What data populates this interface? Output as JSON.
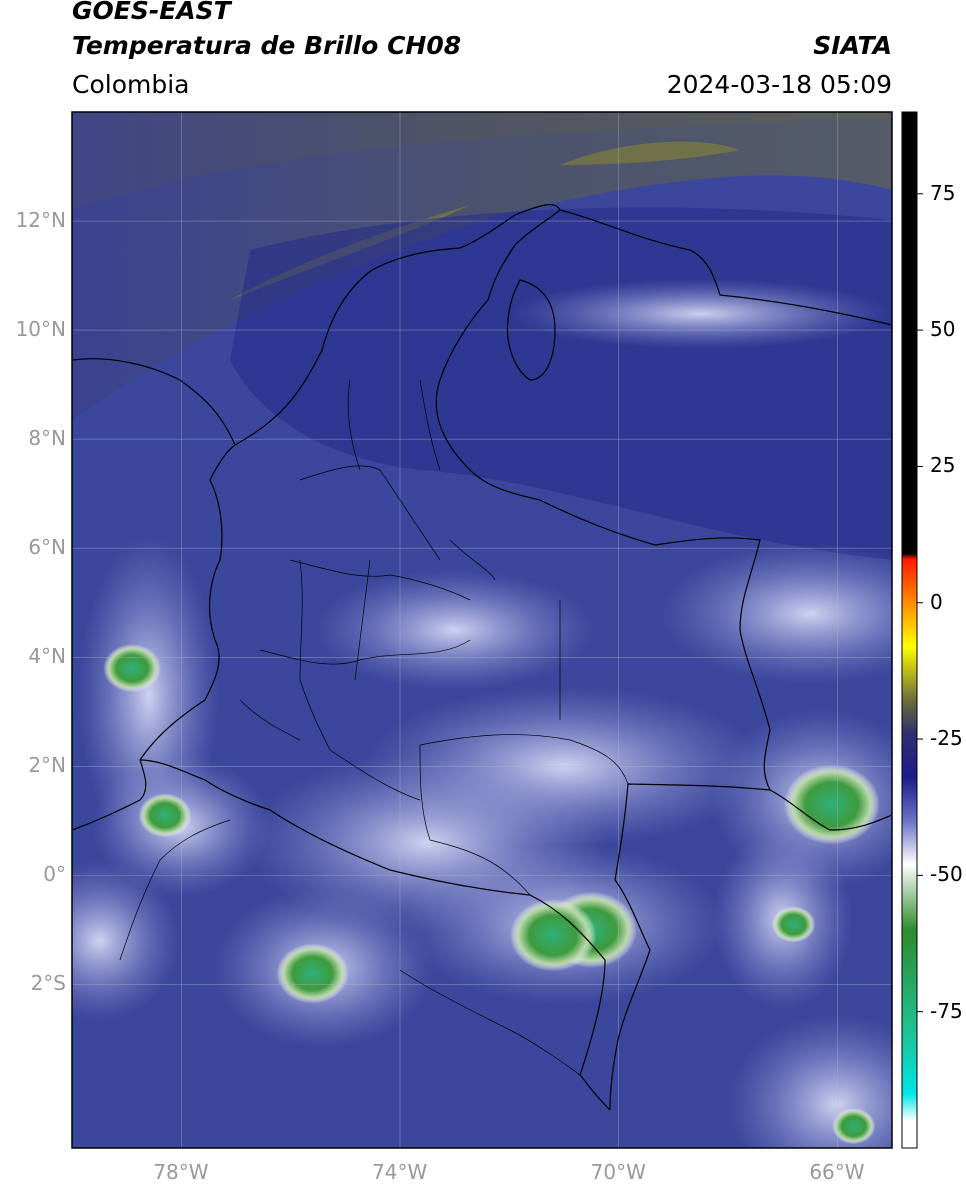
{
  "header": {
    "satellite": "GOES-EAST",
    "product": "Temperatura de Brillo CH08",
    "region": "Colombia",
    "brand": "SIATA",
    "timestamp": "2024-03-18 05:09"
  },
  "map": {
    "lon_range": [
      -80,
      -65
    ],
    "lat_range": [
      -5,
      14
    ],
    "lat_ticks": [
      {
        "lat": 12,
        "label": "12°N"
      },
      {
        "lat": 10,
        "label": "10°N"
      },
      {
        "lat": 8,
        "label": "8°N"
      },
      {
        "lat": 6,
        "label": "6°N"
      },
      {
        "lat": 4,
        "label": "4°N"
      },
      {
        "lat": 2,
        "label": "2°N"
      },
      {
        "lat": 0,
        "label": "0°"
      },
      {
        "lat": -2,
        "label": "2°S"
      }
    ],
    "lon_ticks": [
      {
        "lon": -78,
        "label": "78°W"
      },
      {
        "lon": -74,
        "label": "74°W"
      },
      {
        "lon": -70,
        "label": "70°W"
      },
      {
        "lon": -66,
        "label": "66°W"
      }
    ],
    "grid": true,
    "background_color": "#3b479c",
    "border_color": "#000000",
    "convective_cells": [
      {
        "lon": -66.1,
        "lat": 1.3,
        "intensity": 1.0
      },
      {
        "lon": -70.5,
        "lat": -1.0,
        "intensity": 0.95
      },
      {
        "lon": -71.2,
        "lat": -1.1,
        "intensity": 0.9
      },
      {
        "lon": -75.6,
        "lat": -1.8,
        "intensity": 0.75
      },
      {
        "lon": -78.9,
        "lat": 3.8,
        "intensity": 0.6
      },
      {
        "lon": -78.3,
        "lat": 1.1,
        "intensity": 0.55
      },
      {
        "lon": -66.8,
        "lat": -0.9,
        "intensity": 0.45
      },
      {
        "lon": -65.7,
        "lat": -4.6,
        "intensity": 0.45
      }
    ]
  },
  "colorbar": {
    "range": [
      -100,
      90
    ],
    "ticks": [
      {
        "value": 75,
        "label": "75"
      },
      {
        "value": 50,
        "label": "50"
      },
      {
        "value": 25,
        "label": "25"
      },
      {
        "value": 0,
        "label": "0"
      },
      {
        "value": -25,
        "label": "-25"
      },
      {
        "value": -50,
        "label": "-50"
      },
      {
        "value": -75,
        "label": "-75"
      }
    ],
    "stops": [
      {
        "value": 90,
        "color": "#000000"
      },
      {
        "value": 9,
        "color": "#000000"
      },
      {
        "value": 8,
        "color": "#ff1a00"
      },
      {
        "value": 0,
        "color": "#ff8c00"
      },
      {
        "value": -8,
        "color": "#ffff00"
      },
      {
        "value": -18,
        "color": "#6b6b3c"
      },
      {
        "value": -24,
        "color": "#2f2f6e"
      },
      {
        "value": -32,
        "color": "#1c1c8c"
      },
      {
        "value": -40,
        "color": "#6c72c4"
      },
      {
        "value": -48,
        "color": "#ffffff"
      },
      {
        "value": -60,
        "color": "#2e8b2e"
      },
      {
        "value": -78,
        "color": "#20c090"
      },
      {
        "value": -90,
        "color": "#00e5e5"
      },
      {
        "value": -95,
        "color": "#ffffff"
      },
      {
        "value": -100,
        "color": "#ffffff"
      }
    ]
  }
}
